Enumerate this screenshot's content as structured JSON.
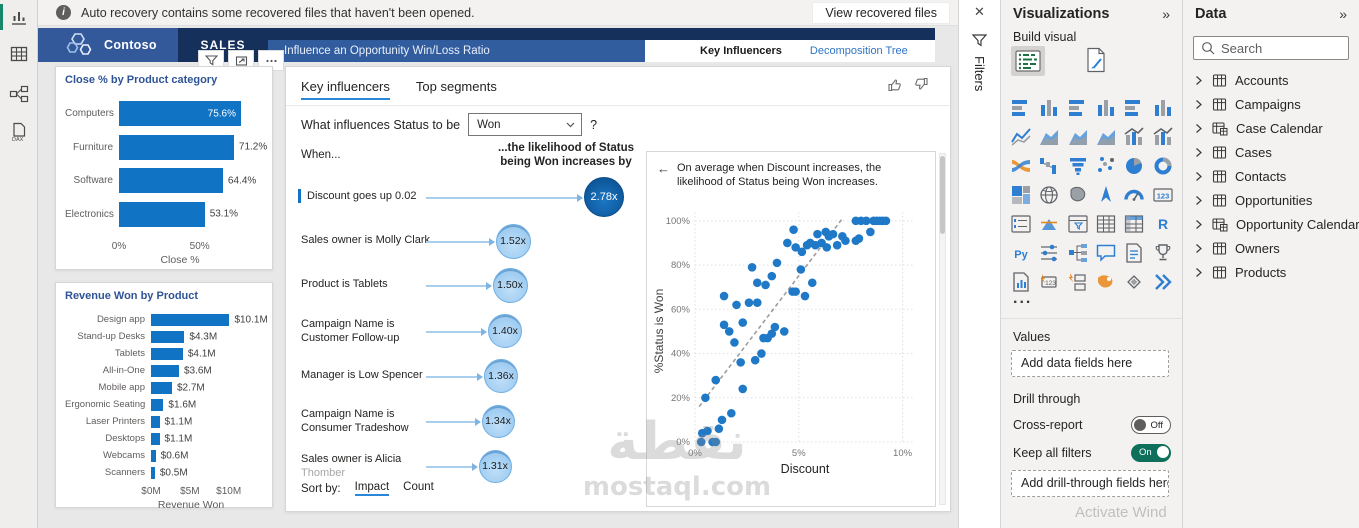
{
  "app": {
    "notification": {
      "icon": "info-icon",
      "text": "Auto recovery contains some recovered files that haven't been opened.",
      "action_label": "View recovered files",
      "close_icon": "close-icon"
    },
    "activate_hint": "Activate Wind"
  },
  "sidebar": {
    "views": [
      {
        "name": "report-view",
        "active": true
      },
      {
        "name": "data-view",
        "active": false
      },
      {
        "name": "model-view",
        "active": false
      },
      {
        "name": "dax-query-view",
        "active": false
      }
    ]
  },
  "header": {
    "brand": "Contoso",
    "logo_icon": "contoso-hexagons-logo",
    "page_tab": "SALES",
    "title": "Influence an Opportunity Win/Loss Ratio",
    "nav_tabs": [
      {
        "label": "Key Influencers",
        "active": true
      },
      {
        "label": "Decomposition Tree",
        "active": false
      }
    ],
    "visual_toolbar_icons": [
      "filter-icon",
      "focus-mode-icon",
      "more-options-icon"
    ]
  },
  "key_influencers": {
    "tabs": [
      {
        "label": "Key influencers",
        "active": true
      },
      {
        "label": "Top segments",
        "active": false
      }
    ],
    "question": "What influences Status to be",
    "dropdown_value": "Won",
    "help_label": "?",
    "when_label": "When...",
    "likelihood_label": "...the likelihood of Status being Won increases by",
    "influencers": [
      {
        "lines": [
          "Discount goes up 0.02"
        ],
        "value": "2.78x",
        "selected": true
      },
      {
        "lines": [
          "Sales owner is Molly Clark"
        ],
        "value": "1.52x"
      },
      {
        "lines": [
          "Product is Tablets"
        ],
        "value": "1.50x"
      },
      {
        "lines": [
          "Campaign Name is",
          "Customer Follow-up"
        ],
        "value": "1.40x"
      },
      {
        "lines": [
          "Manager is Low Spencer"
        ],
        "value": "1.36x"
      },
      {
        "lines": [
          "Campaign Name is",
          "Consumer Tradeshow"
        ],
        "value": "1.34x"
      },
      {
        "lines": [
          "Sales owner is Alicia",
          "Thomber"
        ],
        "value": "1.31x",
        "line2_muted": true
      }
    ],
    "detail_note": "On average when Discount increases, the likelihood of Status being Won increases.",
    "sort_label": "Sort by:",
    "sort_options": [
      {
        "label": "Impact",
        "active": true
      },
      {
        "label": "Count",
        "active": false
      }
    ],
    "feedback_icons": [
      "thumbs-up-icon",
      "thumbs-down-icon"
    ]
  },
  "chart_data": [
    {
      "id": "close-by-category",
      "type": "bar",
      "title": "Close % by Product category",
      "categories": [
        "Computers",
        "Furniture",
        "Software",
        "Electronics"
      ],
      "values": [
        75.6,
        71.2,
        64.4,
        53.1
      ],
      "value_labels": [
        "75.6%",
        "71.2%",
        "64.4%",
        "53.1%"
      ],
      "xlabel": "Close %",
      "xlim": [
        0,
        75.6
      ],
      "x_ticks": [
        {
          "label": "0%",
          "value": 0
        },
        {
          "label": "50%",
          "value": 50
        }
      ]
    },
    {
      "id": "revenue-by-product",
      "type": "bar",
      "title": "Revenue Won by Product",
      "categories": [
        "Design app",
        "Stand-up Desks",
        "Tablets",
        "All-in-One",
        "Mobile app",
        "Ergonomic Seating",
        "Laser Printers",
        "Desktops",
        "Webcams",
        "Scanners"
      ],
      "values": [
        10.1,
        4.3,
        4.1,
        3.6,
        2.7,
        1.6,
        1.1,
        1.1,
        0.6,
        0.5
      ],
      "value_labels": [
        "$10.1M",
        "$4.3M",
        "$4.1M",
        "$3.6M",
        "$2.7M",
        "$1.6M",
        "$1.1M",
        "$1.1M",
        "$0.6M",
        "$0.5M"
      ],
      "xlabel": "Revenue Won",
      "xlim": [
        0,
        10.3
      ],
      "x_ticks": [
        {
          "label": "$0M",
          "value": 0
        },
        {
          "label": "$5M",
          "value": 5
        },
        {
          "label": "$10M",
          "value": 10
        }
      ]
    },
    {
      "id": "discount-vs-win",
      "type": "scatter",
      "xlabel": "Discount",
      "ylabel": "%Status is Won",
      "xlim": [
        0,
        10.6
      ],
      "ylim": [
        0,
        104
      ],
      "x_ticks": [
        {
          "label": "0%",
          "value": 0
        },
        {
          "label": "5%",
          "value": 5
        },
        {
          "label": "10%",
          "value": 10
        }
      ],
      "y_ticks": [
        {
          "label": "0%",
          "value": 0
        },
        {
          "label": "20%",
          "value": 20
        },
        {
          "label": "40%",
          "value": 40
        },
        {
          "label": "60%",
          "value": 60
        },
        {
          "label": "80%",
          "value": 80
        },
        {
          "label": "100%",
          "value": 100
        }
      ],
      "trendline": [
        [
          0.2,
          16
        ],
        [
          7.1,
          101
        ]
      ],
      "points": [
        [
          0.3,
          0
        ],
        [
          0.85,
          0
        ],
        [
          1.0,
          0
        ],
        [
          0.35,
          4
        ],
        [
          0.6,
          5
        ],
        [
          1.15,
          6
        ],
        [
          1.3,
          10
        ],
        [
          1.75,
          13
        ],
        [
          0.5,
          20
        ],
        [
          1.0,
          28
        ],
        [
          2.3,
          24
        ],
        [
          2.2,
          36
        ],
        [
          2.9,
          37
        ],
        [
          3.2,
          40
        ],
        [
          1.4,
          53
        ],
        [
          1.65,
          50
        ],
        [
          1.9,
          45
        ],
        [
          2.3,
          54
        ],
        [
          2.0,
          62
        ],
        [
          1.4,
          66
        ],
        [
          2.6,
          63
        ],
        [
          3.0,
          63
        ],
        [
          3.3,
          47
        ],
        [
          3.5,
          47
        ],
        [
          3.7,
          49
        ],
        [
          3.85,
          52
        ],
        [
          4.3,
          50
        ],
        [
          3.4,
          71
        ],
        [
          3.7,
          75
        ],
        [
          3.0,
          72
        ],
        [
          2.75,
          79
        ],
        [
          3.95,
          81
        ],
        [
          4.45,
          90
        ],
        [
          4.75,
          96
        ],
        [
          4.85,
          88
        ],
        [
          5.15,
          86
        ],
        [
          5.1,
          78
        ],
        [
          4.7,
          68
        ],
        [
          4.85,
          68
        ],
        [
          5.3,
          66
        ],
        [
          5.4,
          89
        ],
        [
          5.55,
          90
        ],
        [
          5.65,
          72
        ],
        [
          5.8,
          89
        ],
        [
          5.9,
          94
        ],
        [
          6.1,
          90
        ],
        [
          6.3,
          95
        ],
        [
          6.35,
          88
        ],
        [
          6.45,
          93
        ],
        [
          6.65,
          94
        ],
        [
          6.85,
          89
        ],
        [
          7.1,
          93
        ],
        [
          7.25,
          91
        ],
        [
          7.75,
          100
        ],
        [
          8.0,
          100
        ],
        [
          8.25,
          100
        ],
        [
          8.6,
          100
        ],
        [
          8.75,
          100
        ],
        [
          8.9,
          100
        ],
        [
          9.05,
          100
        ],
        [
          9.2,
          100
        ],
        [
          7.75,
          91
        ],
        [
          7.9,
          92
        ],
        [
          8.45,
          95
        ]
      ]
    }
  ],
  "filters_pane": {
    "label": "Filters",
    "icon": "filter-icon"
  },
  "visualizations_pane": {
    "title": "Visualizations",
    "collapse_icon": "double-chevron-icon",
    "build_label": "Build visual",
    "selected_visual_icon": "key-influencers-visual-icon",
    "format_icon": "format-visual-icon",
    "gallery": [
      "stacked-bar-chart",
      "stacked-column-chart",
      "clustered-bar-chart",
      "clustered-column-chart",
      "100-stacked-bar-chart",
      "100-stacked-column-chart",
      "line-chart",
      "area-chart",
      "stacked-area-chart",
      "basic-area-chart",
      "line-and-stacked-column-chart",
      "line-and-clustered-column-chart",
      "ribbon-chart",
      "waterfall-chart",
      "funnel-chart",
      "scatter-chart",
      "pie-chart",
      "donut-chart",
      "treemap",
      "map",
      "filled-map",
      "azure-map",
      "gauge",
      "card",
      "multi-row-card",
      "kpi",
      "slicer",
      "table",
      "matrix",
      "r-script-visual",
      "python-visual",
      "key-influencers",
      "decomposition-tree",
      "q-and-a",
      "smart-narrative",
      "metrics",
      "paginated-report",
      "power-apps-visual",
      "power-automate-visual",
      "arcgis-map",
      "shape-map",
      "flow-visual"
    ],
    "more_label": "...",
    "values_label": "Values",
    "values_placeholder": "Add data fields here",
    "drill_label": "Drill through",
    "toggles": [
      {
        "label": "Cross-report",
        "state": "Off",
        "on": false
      },
      {
        "label": "Keep all filters",
        "state": "On",
        "on": true
      }
    ],
    "drill_placeholder": "Add drill-through fields here"
  },
  "data_pane": {
    "title": "Data",
    "collapse_icon": "double-chevron-icon",
    "search_placeholder": "Search",
    "tables": [
      {
        "name": "Accounts",
        "icon": "table-icon"
      },
      {
        "name": "Campaigns",
        "icon": "table-icon"
      },
      {
        "name": "Case Calendar",
        "icon": "calculated-table-icon"
      },
      {
        "name": "Cases",
        "icon": "table-icon"
      },
      {
        "name": "Contacts",
        "icon": "table-icon"
      },
      {
        "name": "Opportunities",
        "icon": "table-icon"
      },
      {
        "name": "Opportunity Calendar",
        "icon": "calculated-table-icon"
      },
      {
        "name": "Owners",
        "icon": "table-icon"
      },
      {
        "name": "Products",
        "icon": "table-icon"
      }
    ]
  },
  "watermark": {
    "line1": "نقطة",
    "line2": "mostaql.com"
  },
  "colors": {
    "accent": "#1173c4",
    "dot": "#1f79c7",
    "bubble_light": "#a9d1f3",
    "bubble_dark": "#0d5496",
    "toggle_on": "#0e6f5a",
    "navy": "#16305c",
    "header_blue": "#315d9f"
  }
}
